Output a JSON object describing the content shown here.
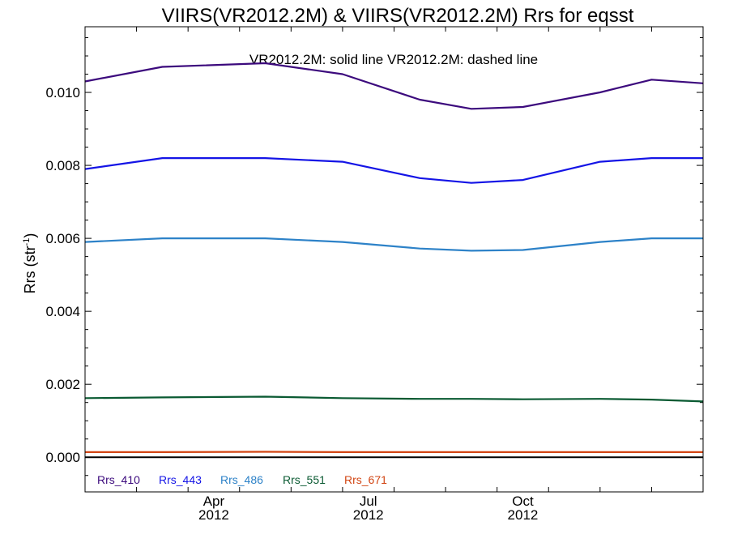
{
  "chart_data": {
    "type": "line",
    "title": "VIIRS(VR2012.2M) & VIIRS(VR2012.2M)  Rrs for eqsst",
    "annotation": "VR2012.2M: solid line   VR2012.2M: dashed line",
    "ylabel_main": "Rrs (str",
    "ylabel_sup": "-1",
    "ylabel_close": ")",
    "ylim": [
      -0.00095,
      0.0118
    ],
    "xlim": [
      0,
      12
    ],
    "x": [
      0,
      1.5,
      3.5,
      5,
      6.5,
      7.5,
      8.5,
      10,
      11,
      12
    ],
    "x_ticks": [
      {
        "pos": 2.5,
        "month": "Apr",
        "year": "2012"
      },
      {
        "pos": 5.5,
        "month": "Jul",
        "year": "2012"
      },
      {
        "pos": 8.5,
        "month": "Oct",
        "year": "2012"
      }
    ],
    "y_ticks": [
      {
        "value": 0.0,
        "label": "0.000"
      },
      {
        "value": 0.002,
        "label": "0.002"
      },
      {
        "value": 0.004,
        "label": "0.004"
      },
      {
        "value": 0.006,
        "label": "0.006"
      },
      {
        "value": 0.008,
        "label": "0.008"
      },
      {
        "value": 0.01,
        "label": "0.010"
      }
    ],
    "zero_line": 0.0,
    "series": [
      {
        "name": "Rrs_410",
        "color": "#3c0a7d",
        "values": [
          0.0103,
          0.0107,
          0.0108,
          0.0105,
          0.0098,
          0.00955,
          0.0096,
          0.01,
          0.01035,
          0.01025
        ]
      },
      {
        "name": "Rrs_443",
        "color": "#1414e6",
        "values": [
          0.0079,
          0.0082,
          0.0082,
          0.0081,
          0.00765,
          0.00752,
          0.0076,
          0.0081,
          0.0082,
          0.0082
        ]
      },
      {
        "name": "Rrs_486",
        "color": "#2d82c8",
        "values": [
          0.0059,
          0.006,
          0.006,
          0.0059,
          0.00572,
          0.00566,
          0.00568,
          0.0059,
          0.006,
          0.006
        ]
      },
      {
        "name": "Rrs_551",
        "color": "#0a5a32",
        "values": [
          0.00162,
          0.00164,
          0.00166,
          0.00162,
          0.0016,
          0.0016,
          0.00159,
          0.0016,
          0.00158,
          0.00153
        ]
      },
      {
        "name": "Rrs_671",
        "color": "#d24614",
        "values": [
          0.00014,
          0.00014,
          0.00015,
          0.00014,
          0.00014,
          0.00014,
          0.00014,
          0.00014,
          0.00014,
          0.00014
        ]
      }
    ]
  }
}
